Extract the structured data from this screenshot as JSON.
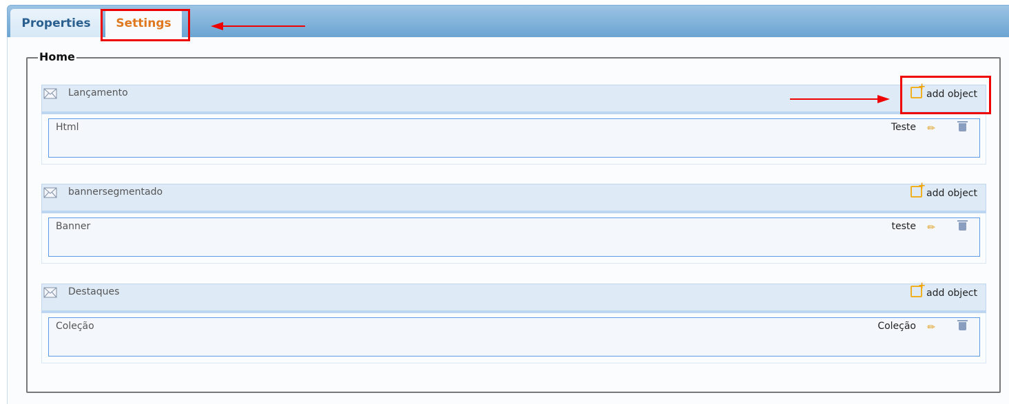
{
  "tabs": [
    {
      "label": "Properties",
      "active": false
    },
    {
      "label": "Settings",
      "active": true
    }
  ],
  "fieldset": {
    "legend": "Home"
  },
  "add_object_label": "add object",
  "sections": [
    {
      "title": "Lançamento",
      "item": {
        "type": "Html",
        "name": "Teste"
      }
    },
    {
      "title": "bannersegmentado",
      "item": {
        "type": "Banner",
        "name": "teste"
      }
    },
    {
      "title": "Destaques",
      "item": {
        "type": "Coleção",
        "name": "Coleção"
      }
    }
  ],
  "colors": {
    "accent": "#e07820",
    "annotation": "#ee0000"
  }
}
